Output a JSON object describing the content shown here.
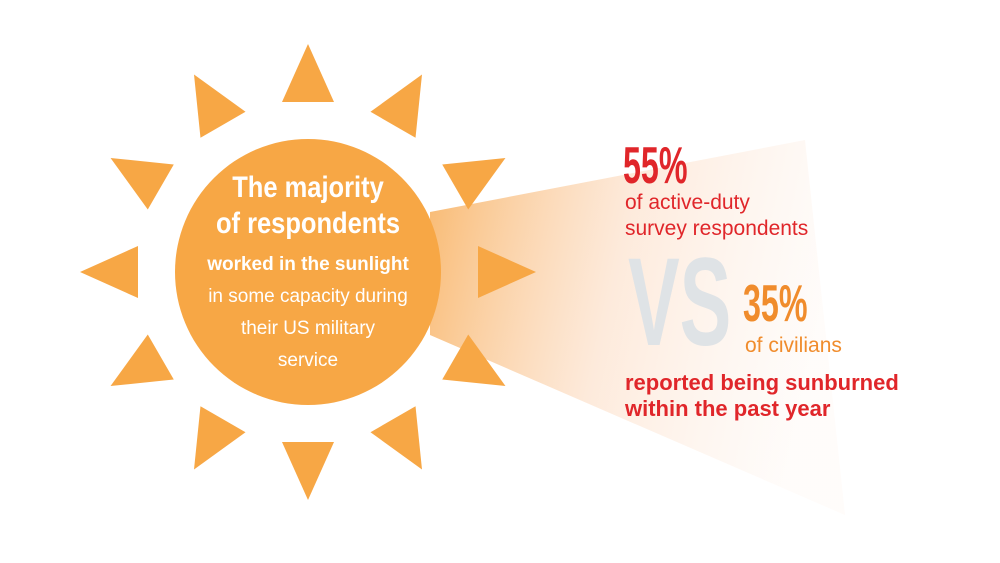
{
  "sun": {
    "headline": [
      "The majority",
      "of respondents"
    ],
    "body": [
      "worked in the sunlight",
      "in some capacity during",
      "their US military",
      "service"
    ]
  },
  "comparison": {
    "group_1": {
      "percent": "55%",
      "label": [
        "of active-duty",
        "survey respondents"
      ]
    },
    "versus": "VS",
    "group_2": {
      "percent": "35%",
      "label": [
        "of civilians"
      ]
    },
    "conclusion": [
      "reported being sunburned",
      "within the past year"
    ]
  }
}
